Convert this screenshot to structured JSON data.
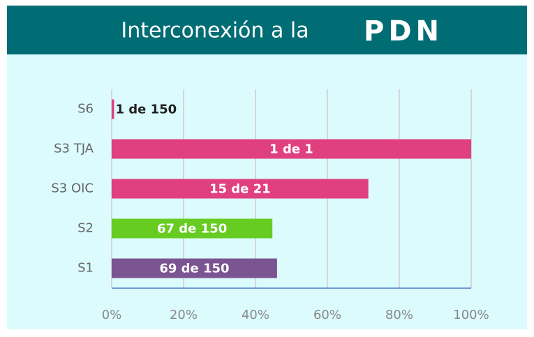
{
  "chart_data": {
    "type": "bar",
    "orientation": "horizontal",
    "title": "Interconexión a la",
    "logo": "PDN",
    "categories": [
      "S6",
      "S3 TJA",
      "S3 OIC",
      "S2",
      "S1"
    ],
    "values": [
      0.67,
      100,
      71.4,
      44.7,
      46
    ],
    "value_labels": [
      "1 de 150",
      "1 de 1",
      "15 de 21",
      "67 de 150",
      "69 de 150"
    ],
    "colors": [
      "#e0407f",
      "#e0407f",
      "#e0407f",
      "#66cc22",
      "#7a5591"
    ],
    "xlim": [
      0,
      100
    ],
    "xticks": [
      {
        "value": 0,
        "label": "0%"
      },
      {
        "value": 20,
        "label": "20%"
      },
      {
        "value": 40,
        "label": "40%"
      },
      {
        "value": 60,
        "label": "60%"
      },
      {
        "value": 80,
        "label": "80%"
      },
      {
        "value": 100,
        "label": "100%"
      }
    ],
    "grid": true
  }
}
